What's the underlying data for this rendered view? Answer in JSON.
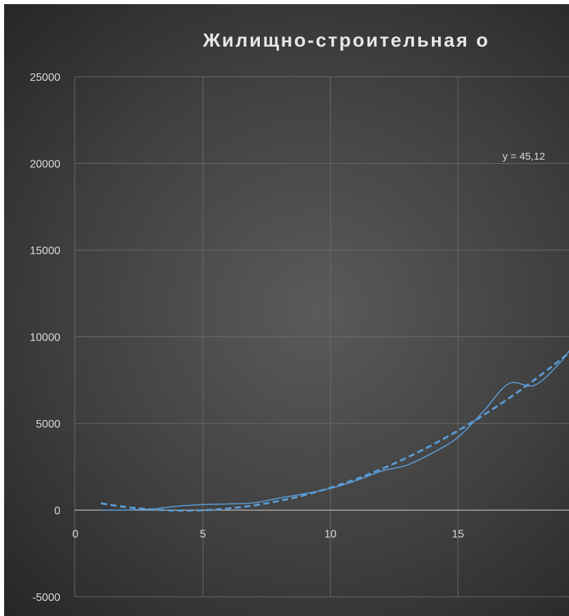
{
  "chart_data": {
    "type": "line",
    "title": "Жилищно-строительная о",
    "xlabel": "",
    "ylabel": "",
    "xlim": [
      0,
      19.5
    ],
    "ylim": [
      -5000,
      25000
    ],
    "x_ticks": [
      0,
      5,
      10,
      15
    ],
    "x_tick_labels": [
      "0",
      "5",
      "10",
      "15"
    ],
    "y_ticks": [
      -5000,
      0,
      5000,
      10000,
      15000,
      20000,
      25000
    ],
    "y_tick_labels": [
      "-5000",
      "0",
      "5000",
      "10000",
      "15000",
      "20000",
      "25000"
    ],
    "grid": true,
    "series": [
      {
        "style": "solid-smooth",
        "color": "#5b9bd5",
        "x": [
          1,
          2,
          3,
          4,
          5,
          6,
          7,
          8,
          9,
          10,
          11,
          12,
          13,
          14,
          15,
          16,
          17,
          18,
          19,
          19.5
        ],
        "y": [
          0,
          10,
          60,
          230,
          320,
          360,
          420,
          700,
          950,
          1250,
          1700,
          2250,
          2600,
          3300,
          4200,
          5700,
          7300,
          7200,
          8500,
          9500
        ]
      }
    ],
    "trendline": {
      "type": "polynomial",
      "style": "dashed",
      "color": "#5b9bd5",
      "equation_label": "y = 45,12",
      "x_range": [
        1,
        19.6
      ]
    }
  }
}
